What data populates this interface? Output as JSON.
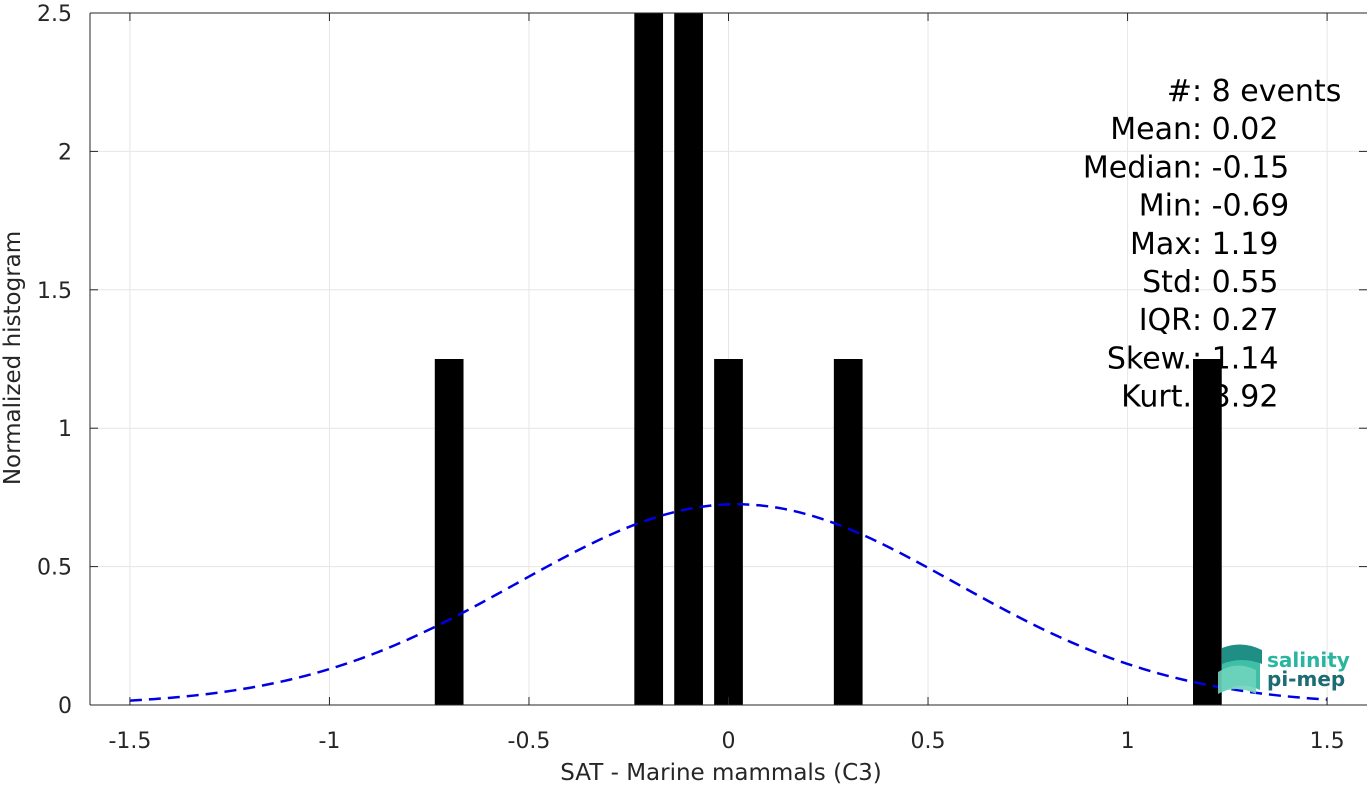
{
  "chart_data": {
    "type": "bar",
    "xlabel": "SAT - Marine mammals (C3)",
    "ylabel": "Normalized histogram",
    "xlim": [
      -1.6,
      1.6
    ],
    "ylim": [
      0,
      2.5
    ],
    "xticks": [
      -1.5,
      -1,
      -0.5,
      0,
      0.5,
      1,
      1.5
    ],
    "xtick_labels": [
      "-1.5",
      "-1",
      "-0.5",
      "0",
      "0.5",
      "1",
      "1.5"
    ],
    "yticks": [
      0,
      0.5,
      1,
      1.5,
      2,
      2.5
    ],
    "ytick_labels": [
      "0",
      "0.5",
      "1",
      "1.5",
      "2",
      "2.5"
    ],
    "grid": true,
    "bin_width": 0.1,
    "bars": [
      {
        "x": -0.7,
        "value": 1.25
      },
      {
        "x": -0.2,
        "value": 2.5
      },
      {
        "x": -0.1,
        "value": 2.5
      },
      {
        "x": 0.0,
        "value": 1.25
      },
      {
        "x": 0.3,
        "value": 1.25
      },
      {
        "x": 1.2,
        "value": 1.25
      }
    ],
    "bar_color": "#000000",
    "normal_fit": {
      "mean": 0.02,
      "std": 0.55,
      "x_range": [
        -1.5,
        1.5
      ],
      "color": "#0000e6",
      "style": "dashed"
    },
    "stats": [
      {
        "label": "#  ",
        "value": ": 8 events"
      },
      {
        "label": "Mean ",
        "value": ": 0.02"
      },
      {
        "label": "Median ",
        "value": ": -0.15"
      },
      {
        "label": "Min ",
        "value": ": -0.69"
      },
      {
        "label": "Max ",
        "value": ": 1.19"
      },
      {
        "label": "Std ",
        "value": ": 0.55"
      },
      {
        "label": "IQR ",
        "value": ": 0.27"
      },
      {
        "label": "Skew. ",
        "value": ": 1.14"
      },
      {
        "label": "Kurt. ",
        "value": ": 3.92"
      }
    ]
  },
  "logo": {
    "line1": "salinity",
    "line2": "pi-mep",
    "color1": "#2ab5a0",
    "color2": "#1d6b73"
  }
}
